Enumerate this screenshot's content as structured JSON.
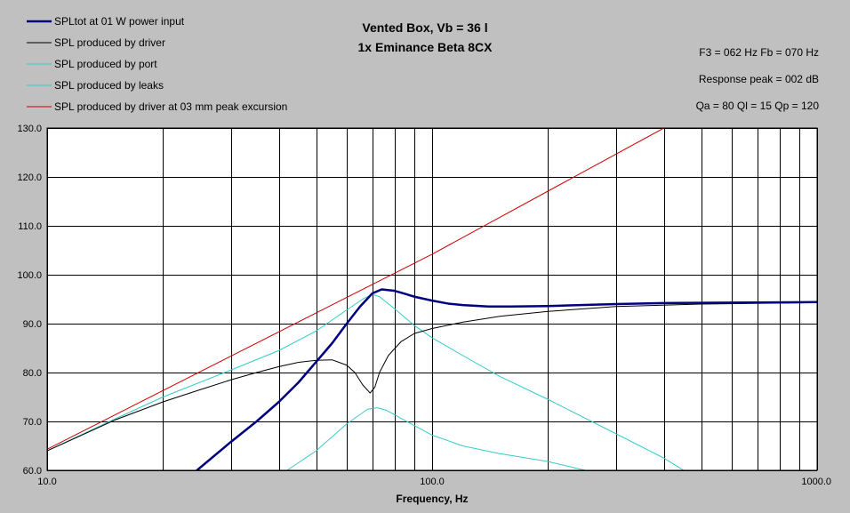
{
  "chart_data": {
    "type": "line",
    "title_line1": "Vented Box, Vb = 36 l",
    "title_line2": "1x Eminance Beta 8CX",
    "info": {
      "f3_fb": "F3 = 062 Hz  Fb = 070 Hz",
      "response_peak": "Response peak = 002 dB",
      "q_values": "Qa = 80  Ql = 15  Qp = 120"
    },
    "xlabel": "Frequency, Hz",
    "ylabel": "",
    "x_scale": "log",
    "xlim": [
      10,
      1000
    ],
    "ylim": [
      60,
      130
    ],
    "grid": true,
    "legend_position": "top-left",
    "x_tick_labels": [
      {
        "value": 10,
        "label": "10.0"
      },
      {
        "value": 100,
        "label": "100.0"
      },
      {
        "value": 1000,
        "label": "1000.0"
      }
    ],
    "x_grid": [
      20,
      30,
      40,
      50,
      60,
      70,
      80,
      90,
      200,
      300,
      400,
      500,
      600,
      700,
      800,
      900
    ],
    "y_ticks": [
      {
        "value": 60,
        "label": "60.0"
      },
      {
        "value": 70,
        "label": "70.0"
      },
      {
        "value": 80,
        "label": "80.0"
      },
      {
        "value": 90,
        "label": "90.0"
      },
      {
        "value": 100,
        "label": "100.0"
      },
      {
        "value": 110,
        "label": "110.0"
      },
      {
        "value": 120,
        "label": "120.0"
      },
      {
        "value": 130,
        "label": "130.0"
      }
    ],
    "series": [
      {
        "name": "SPLtot at 01 W power input",
        "color": "#000080",
        "width": 2.5,
        "points": [
          [
            24.5,
            60
          ],
          [
            30,
            65.8
          ],
          [
            35,
            70
          ],
          [
            40,
            74
          ],
          [
            45,
            78
          ],
          [
            50,
            82.2
          ],
          [
            55,
            86
          ],
          [
            60,
            90
          ],
          [
            65,
            93.5
          ],
          [
            70,
            96.2
          ],
          [
            74,
            97
          ],
          [
            80,
            96.7
          ],
          [
            85,
            96.1
          ],
          [
            90,
            95.5
          ],
          [
            100,
            94.7
          ],
          [
            110,
            94.1
          ],
          [
            120,
            93.8
          ],
          [
            140,
            93.5
          ],
          [
            160,
            93.5
          ],
          [
            200,
            93.6
          ],
          [
            300,
            94
          ],
          [
            400,
            94.2
          ],
          [
            600,
            94.3
          ],
          [
            1000,
            94.4
          ]
        ]
      },
      {
        "name": "SPL produced by driver",
        "color": "#000000",
        "width": 1,
        "points": [
          [
            10,
            64
          ],
          [
            12,
            66.8
          ],
          [
            15,
            70.3
          ],
          [
            20,
            74
          ],
          [
            25,
            76.5
          ],
          [
            30,
            78.5
          ],
          [
            35,
            80
          ],
          [
            40,
            81.2
          ],
          [
            45,
            82.1
          ],
          [
            50,
            82.5
          ],
          [
            55,
            82.6
          ],
          [
            60,
            81.5
          ],
          [
            63,
            80
          ],
          [
            66,
            77.5
          ],
          [
            69,
            75.8
          ],
          [
            71,
            77
          ],
          [
            73,
            80
          ],
          [
            77,
            83.5
          ],
          [
            83,
            86.3
          ],
          [
            90,
            88
          ],
          [
            100,
            89
          ],
          [
            120,
            90.3
          ],
          [
            150,
            91.5
          ],
          [
            200,
            92.5
          ],
          [
            300,
            93.5
          ],
          [
            500,
            94
          ],
          [
            1000,
            94.3
          ]
        ]
      },
      {
        "name": "SPL produced by port",
        "color": "#33cccc",
        "width": 1,
        "points": [
          [
            42,
            60
          ],
          [
            50,
            64
          ],
          [
            60,
            69.5
          ],
          [
            68,
            72.5
          ],
          [
            72,
            72.8
          ],
          [
            76,
            72.3
          ],
          [
            85,
            70.2
          ],
          [
            100,
            67.2
          ],
          [
            120,
            65
          ],
          [
            150,
            63.4
          ],
          [
            200,
            61.8
          ],
          [
            250,
            60
          ]
        ]
      },
      {
        "name": "SPL produced by leaks",
        "color": "#33cccc",
        "width": 1,
        "points": [
          [
            10,
            64
          ],
          [
            15,
            70.5
          ],
          [
            20,
            75
          ],
          [
            30,
            80.5
          ],
          [
            40,
            84.5
          ],
          [
            50,
            88.5
          ],
          [
            60,
            92.8
          ],
          [
            66,
            95
          ],
          [
            70,
            96
          ],
          [
            73,
            95.5
          ],
          [
            80,
            93
          ],
          [
            90,
            89.6
          ],
          [
            100,
            87.1
          ],
          [
            120,
            83.5
          ],
          [
            150,
            79.2
          ],
          [
            200,
            74.5
          ],
          [
            300,
            67.5
          ],
          [
            400,
            62.5
          ],
          [
            450,
            60
          ]
        ]
      },
      {
        "name": "SPL produced by driver at 03 mm peak excursion",
        "color": "#cc0000",
        "width": 1,
        "points": [
          [
            10,
            64.3
          ],
          [
            100,
            104.2
          ],
          [
            400,
            130
          ]
        ]
      }
    ]
  }
}
